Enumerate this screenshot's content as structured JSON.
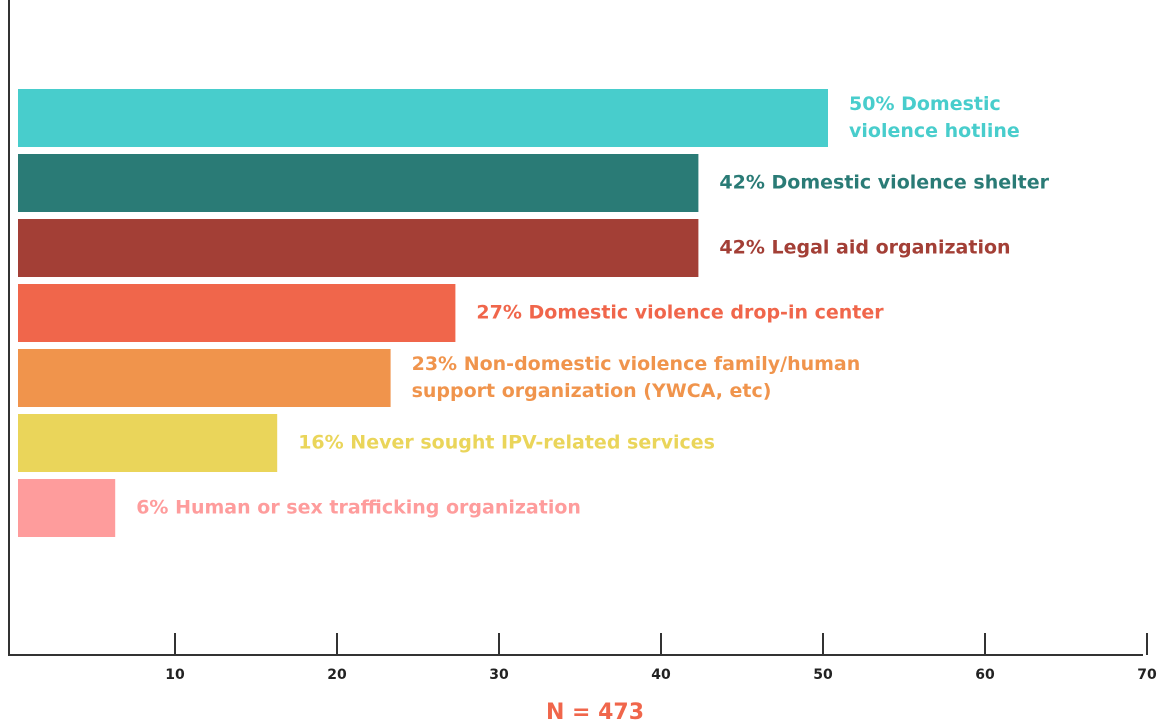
{
  "chart_data": {
    "type": "bar",
    "orientation": "horizontal",
    "categories": [
      "Domestic violence hotline",
      "Domestic violence shelter",
      "Legal aid organization",
      "Domestic violence drop-in center",
      "Non-domestic violence family/human support organization (YWCA, etc)",
      "Never sought IPV-related services",
      "Human or sex trafficking organization"
    ],
    "values": [
      50,
      42,
      42,
      27,
      23,
      16,
      6
    ],
    "value_labels": [
      "50%",
      "42%",
      "42%",
      "27%",
      "23%",
      "16%",
      "6%"
    ],
    "colors": [
      "#48cdcc",
      "#2a7b76",
      "#a33f36",
      "#f0664b",
      "#f0944c",
      "#ead55a",
      "#fe9c9c"
    ],
    "xlim": [
      0,
      70
    ],
    "xticks": [
      10,
      20,
      30,
      40,
      50,
      60,
      70
    ],
    "xlabel": "N = 473"
  }
}
